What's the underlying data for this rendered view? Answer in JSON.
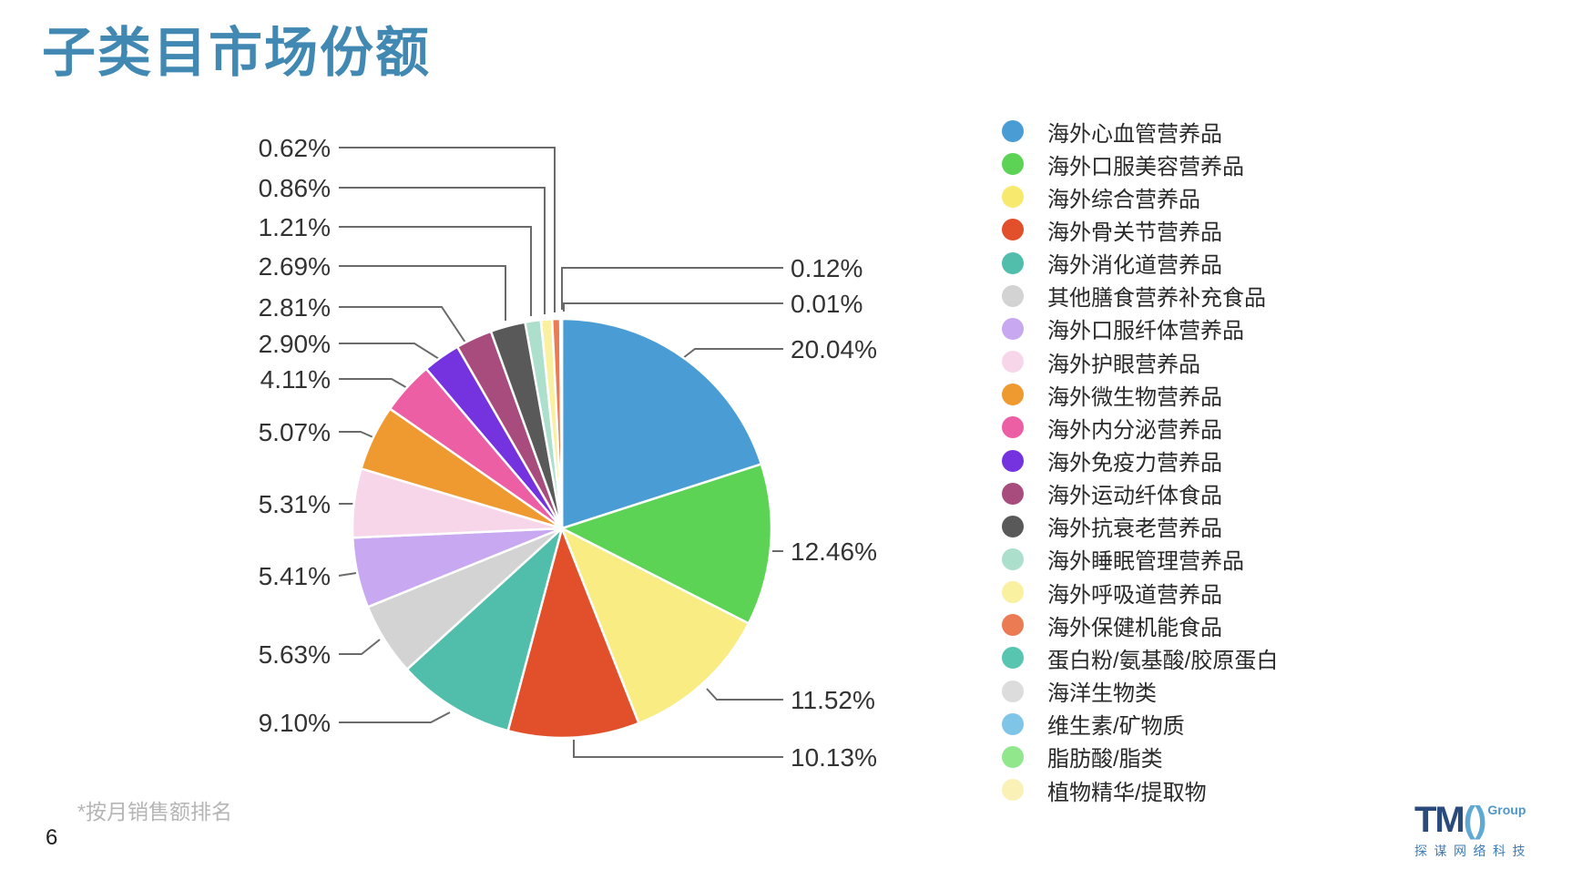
{
  "title": "子类目市场份额",
  "footnote": "*按月销售额排名",
  "page_number": "6",
  "logo": {
    "tm": "TM",
    "brackets": "()",
    "group": "Group",
    "cn": "探谋网络科技"
  },
  "chart_data": {
    "type": "pie",
    "title": "子类目市场份额",
    "direction": "clockwise",
    "start_angle_deg": 0,
    "values_unit": "%",
    "legend_position": "right",
    "note": "*按月销售额排名",
    "slices": [
      {
        "label": "海外心血管营养品",
        "value": 20.04,
        "pct_label": "20.04%",
        "color": "#4A9CD4"
      },
      {
        "label": "海外口服美容营养品",
        "value": 12.46,
        "pct_label": "12.46%",
        "color": "#5CD355"
      },
      {
        "label": "海外综合营养品",
        "value": 11.52,
        "pct_label": "11.52%",
        "color": "#F8EC82"
      },
      {
        "label": "海外骨关节营养品",
        "value": 10.13,
        "pct_label": "10.13%",
        "color": "#E1502B"
      },
      {
        "label": "海外消化道营养品",
        "value": 9.1,
        "pct_label": "9.10%",
        "color": "#50BEAB"
      },
      {
        "label": "其他膳食营养补充食品",
        "value": 5.63,
        "pct_label": "5.63%",
        "color": "#D3D3D3"
      },
      {
        "label": "海外口服纤体营养品",
        "value": 5.41,
        "pct_label": "5.41%",
        "color": "#C8A8F0"
      },
      {
        "label": "海外护眼营养品",
        "value": 5.31,
        "pct_label": "5.31%",
        "color": "#F8D6EA"
      },
      {
        "label": "海外微生物营养品",
        "value": 5.07,
        "pct_label": "5.07%",
        "color": "#EF9A31"
      },
      {
        "label": "海外内分泌营养品",
        "value": 4.11,
        "pct_label": "4.11%",
        "color": "#EC5FA4"
      },
      {
        "label": "海外免疫力营养品",
        "value": 2.9,
        "pct_label": "2.90%",
        "color": "#7433DF"
      },
      {
        "label": "海外运动纤体食品",
        "value": 2.81,
        "pct_label": "2.81%",
        "color": "#A84B7D"
      },
      {
        "label": "海外抗衰老营养品",
        "value": 2.69,
        "pct_label": "2.69%",
        "color": "#595959"
      },
      {
        "label": "海外睡眠管理营养品",
        "value": 1.21,
        "pct_label": "1.21%",
        "color": "#ACE0CD"
      },
      {
        "label": "海外呼吸道营养品",
        "value": 0.86,
        "pct_label": "0.86%",
        "color": "#F9F0A0"
      },
      {
        "label": "海外保健机能食品",
        "value": 0.62,
        "pct_label": "0.62%",
        "color": "#EB7B53"
      },
      {
        "label": "蛋白粉/氨基酸/胶原蛋白",
        "value": 0.12,
        "pct_label": "0.12%",
        "color": "#58C5B1"
      },
      {
        "label": "海洋生物类",
        "value": 0.01,
        "pct_label": "0.01%",
        "color": "#DCDCDC"
      }
    ],
    "legend": [
      {
        "label": "海外心血管营养品",
        "color": "#4A9CD4"
      },
      {
        "label": "海外口服美容营养品",
        "color": "#5CD355"
      },
      {
        "label": "海外综合营养品",
        "color": "#F7E96D"
      },
      {
        "label": "海外骨关节营养品",
        "color": "#E1502B"
      },
      {
        "label": "海外消化道营养品",
        "color": "#50BEAB"
      },
      {
        "label": "其他膳食营养补充食品",
        "color": "#D3D3D3"
      },
      {
        "label": "海外口服纤体营养品",
        "color": "#C8A8F0"
      },
      {
        "label": "海外护眼营养品",
        "color": "#F8D6EA"
      },
      {
        "label": "海外微生物营养品",
        "color": "#EF9A31"
      },
      {
        "label": "海外内分泌营养品",
        "color": "#EC5FA4"
      },
      {
        "label": "海外免疫力营养品",
        "color": "#7433DF"
      },
      {
        "label": "海外运动纤体食品",
        "color": "#A84B7D"
      },
      {
        "label": "海外抗衰老营养品",
        "color": "#595959"
      },
      {
        "label": "海外睡眠管理营养品",
        "color": "#ACE0CD"
      },
      {
        "label": "海外呼吸道营养品",
        "color": "#F9F0A0"
      },
      {
        "label": "海外保健机能食品",
        "color": "#EB7B53"
      },
      {
        "label": "蛋白粉/氨基酸/胶原蛋白",
        "color": "#58C5B1"
      },
      {
        "label": "海洋生物类",
        "color": "#DCDCDC"
      },
      {
        "label": "维生素/矿物质",
        "color": "#7EC5E8"
      },
      {
        "label": "脂肪酸/脂类",
        "color": "#90E78C"
      },
      {
        "label": "植物精华/提取物",
        "color": "#F9F1B6"
      }
    ]
  }
}
